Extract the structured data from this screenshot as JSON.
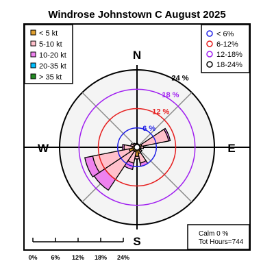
{
  "chart_data": {
    "type": "windrose",
    "title": "Windrose  Johnstown C August 2025",
    "compass": {
      "north": "N",
      "east": "E",
      "south": "S",
      "west": "W"
    },
    "ring_percents": [
      6,
      12,
      18,
      24
    ],
    "ring_labels": [
      "6 %",
      "12 %",
      "18 %",
      "24 %"
    ],
    "ring_colors": [
      "#1e1ee6",
      "#e61e1e",
      "#a020f0",
      "#000000"
    ],
    "speed_bins": [
      {
        "label": "< 5  kt",
        "color": "#e0a030"
      },
      {
        "label": "5-10 kt",
        "color": "#ffc0cb"
      },
      {
        "label": "10-20 kt",
        "color": "#ee82ee"
      },
      {
        "label": "20-35 kt",
        "color": "#00bfff"
      },
      {
        "label": "> 35 kt",
        "color": "#228b22"
      }
    ],
    "freq_legend": [
      {
        "label": "< 6%",
        "color": "#1e1ee6"
      },
      {
        "label": "6-12%",
        "color": "#e61e1e"
      },
      {
        "label": "12-18%",
        "color": "#a020f0"
      },
      {
        "label": "18-24%",
        "color": "#000000"
      }
    ],
    "sector_width_deg": 22.5,
    "sectors": [
      {
        "dir": 0,
        "cumulative": [
          1.0,
          1.2,
          1.2
        ]
      },
      {
        "dir": 22.5,
        "cumulative": [
          0.8,
          1.0,
          1.0
        ]
      },
      {
        "dir": 45,
        "cumulative": [
          0.8,
          1.0,
          1.0
        ]
      },
      {
        "dir": 67.5,
        "cumulative": [
          1.5,
          10.0,
          10.5
        ]
      },
      {
        "dir": 90,
        "cumulative": [
          1.0,
          2.0,
          2.0
        ]
      },
      {
        "dir": 112.5,
        "cumulative": [
          1.0,
          1.3,
          1.3
        ]
      },
      {
        "dir": 135,
        "cumulative": [
          1.2,
          1.8,
          1.8
        ]
      },
      {
        "dir": 157.5,
        "cumulative": [
          2.0,
          5.0,
          6.0
        ]
      },
      {
        "dir": 180,
        "cumulative": [
          2.8,
          3.6,
          3.6
        ]
      },
      {
        "dir": 202.5,
        "cumulative": [
          1.5,
          5.0,
          7.0
        ]
      },
      {
        "dir": 225,
        "cumulative": [
          1.5,
          12.0,
          16.0
        ]
      },
      {
        "dir": 247.5,
        "cumulative": [
          2.5,
          14.0,
          16.5
        ]
      },
      {
        "dir": 270,
        "cumulative": [
          1.5,
          4.0,
          4.5
        ]
      },
      {
        "dir": 292.5,
        "cumulative": [
          1.0,
          2.0,
          2.0
        ]
      },
      {
        "dir": 315,
        "cumulative": [
          0.8,
          1.5,
          1.5
        ]
      },
      {
        "dir": 337.5,
        "cumulative": [
          0.8,
          1.2,
          1.2
        ]
      }
    ],
    "calm_label": "Calm 0 %",
    "hours_label": "Tot Hours=744",
    "scale_ticks": [
      "0%",
      "6%",
      "12%",
      "18%",
      "24%"
    ]
  }
}
